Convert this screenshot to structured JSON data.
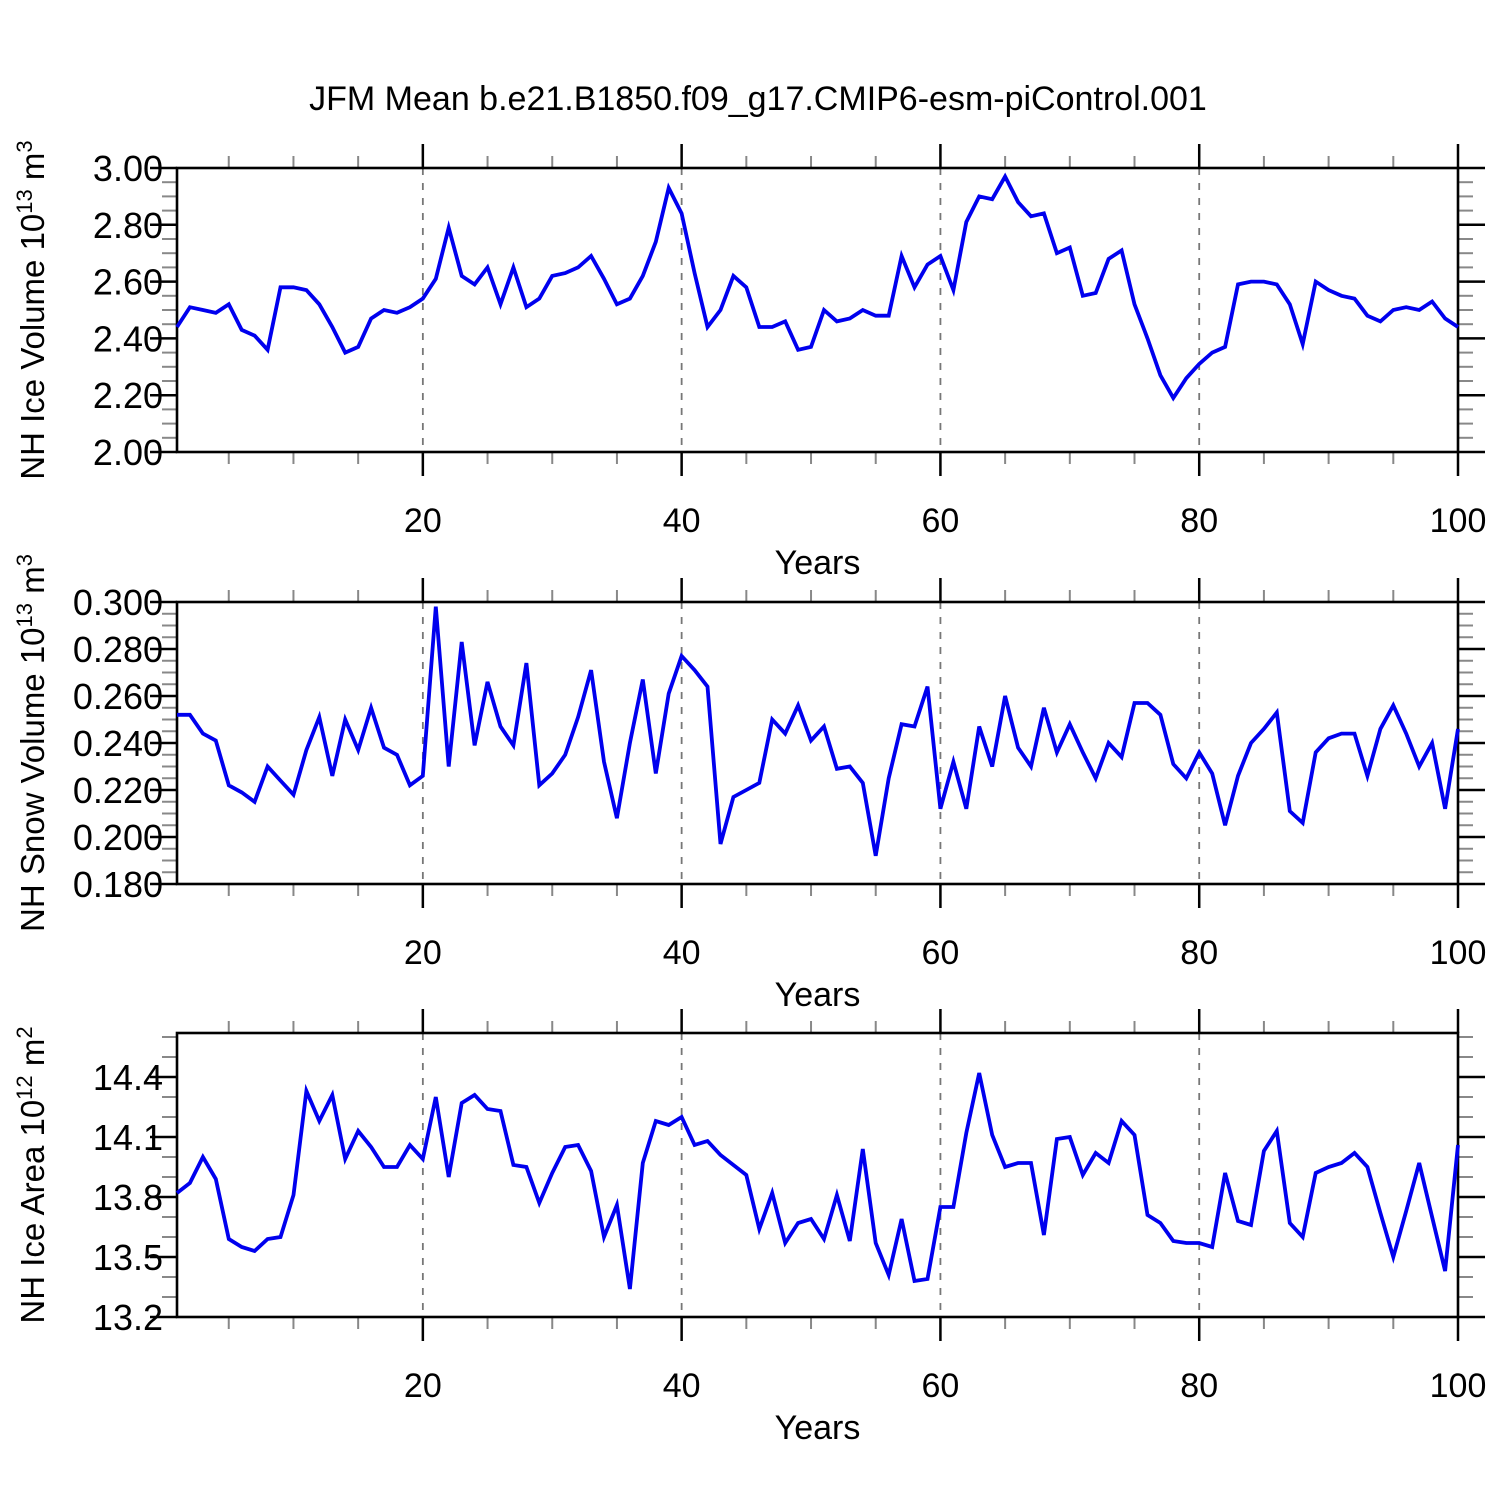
{
  "title": "JFM Mean b.e21.B1850.f09_g17.CMIP6-esm-piControl.001",
  "colors": {
    "line": "#0000ee",
    "frame": "#000000",
    "major_tick": "#000000",
    "minor_tick": "#888888",
    "gridline": "#777777",
    "text": "#000000",
    "background": "#ffffff"
  },
  "x_axis": {
    "label": "Years",
    "range": [
      1,
      100
    ],
    "major_ticks": [
      20,
      40,
      60,
      80,
      100
    ],
    "major_tick_labels": [
      "20",
      "40",
      "60",
      "80",
      "100"
    ],
    "minor_tick_step": 5,
    "gridlines": [
      20,
      40,
      60,
      80
    ]
  },
  "chart_data": [
    {
      "type": "line",
      "title": "NH Ice Volume",
      "ylabel": "NH Ice Volume 10^13 m^3",
      "ylabel_rich": [
        {
          "text": "NH Ice Volume 10",
          "sup": false
        },
        {
          "text": "13",
          "sup": true
        },
        {
          "text": " m",
          "sup": false
        },
        {
          "text": "3",
          "sup": true
        }
      ],
      "xlabel": "Years",
      "ylim": [
        2.0,
        3.0
      ],
      "ytick_values": [
        2.0,
        2.2,
        2.4,
        2.6,
        2.8,
        3.0
      ],
      "ytick_labels": [
        "2.00",
        "2.20",
        "2.40",
        "2.60",
        "2.80",
        "3.00"
      ],
      "yminor_step": 0.05,
      "x_start": 1,
      "values": [
        2.44,
        2.51,
        2.5,
        2.49,
        2.52,
        2.43,
        2.41,
        2.36,
        2.58,
        2.58,
        2.57,
        2.52,
        2.44,
        2.35,
        2.37,
        2.47,
        2.5,
        2.49,
        2.51,
        2.54,
        2.61,
        2.79,
        2.62,
        2.59,
        2.65,
        2.52,
        2.65,
        2.51,
        2.54,
        2.62,
        2.63,
        2.65,
        2.69,
        2.61,
        2.52,
        2.54,
        2.62,
        2.74,
        2.93,
        2.84,
        2.63,
        2.44,
        2.5,
        2.62,
        2.58,
        2.44,
        2.44,
        2.46,
        2.36,
        2.37,
        2.5,
        2.46,
        2.47,
        2.5,
        2.48,
        2.48,
        2.69,
        2.58,
        2.66,
        2.69,
        2.57,
        2.81,
        2.9,
        2.89,
        2.97,
        2.88,
        2.83,
        2.84,
        2.7,
        2.72,
        2.55,
        2.56,
        2.68,
        2.71,
        2.52,
        2.4,
        2.27,
        2.19,
        2.26,
        2.31,
        2.35,
        2.37,
        2.59,
        2.6,
        2.6,
        2.59,
        2.52,
        2.38,
        2.6,
        2.57,
        2.55,
        2.54,
        2.48,
        2.46,
        2.5,
        2.51,
        2.5,
        2.53,
        2.47,
        2.44
      ]
    },
    {
      "type": "line",
      "title": "NH Snow Volume",
      "ylabel": "NH Snow Volume 10^13 m^3",
      "ylabel_rich": [
        {
          "text": "NH Snow Volume 10",
          "sup": false
        },
        {
          "text": "13",
          "sup": true
        },
        {
          "text": " m",
          "sup": false
        },
        {
          "text": "3",
          "sup": true
        }
      ],
      "xlabel": "Years",
      "ylim": [
        0.18,
        0.3
      ],
      "ytick_values": [
        0.18,
        0.2,
        0.22,
        0.24,
        0.26,
        0.28,
        0.3
      ],
      "ytick_labels": [
        "0.180",
        "0.200",
        "0.220",
        "0.240",
        "0.260",
        "0.280",
        "0.300"
      ],
      "yminor_step": 0.005,
      "x_start": 1,
      "values": [
        0.252,
        0.252,
        0.244,
        0.241,
        0.222,
        0.219,
        0.215,
        0.23,
        0.224,
        0.218,
        0.237,
        0.251,
        0.226,
        0.25,
        0.237,
        0.255,
        0.238,
        0.235,
        0.222,
        0.226,
        0.298,
        0.23,
        0.283,
        0.239,
        0.266,
        0.247,
        0.239,
        0.274,
        0.222,
        0.227,
        0.235,
        0.251,
        0.271,
        0.232,
        0.208,
        0.24,
        0.267,
        0.227,
        0.261,
        0.277,
        0.271,
        0.264,
        0.197,
        0.217,
        0.22,
        0.223,
        0.25,
        0.244,
        0.256,
        0.241,
        0.247,
        0.229,
        0.23,
        0.223,
        0.192,
        0.225,
        0.248,
        0.247,
        0.264,
        0.212,
        0.232,
        0.212,
        0.247,
        0.23,
        0.26,
        0.238,
        0.23,
        0.255,
        0.236,
        0.248,
        0.236,
        0.225,
        0.24,
        0.234,
        0.257,
        0.257,
        0.252,
        0.231,
        0.225,
        0.236,
        0.227,
        0.205,
        0.226,
        0.24,
        0.246,
        0.253,
        0.211,
        0.206,
        0.236,
        0.242,
        0.244,
        0.244,
        0.226,
        0.246,
        0.256,
        0.244,
        0.23,
        0.24,
        0.212,
        0.246
      ]
    },
    {
      "type": "line",
      "title": "NH Ice Area",
      "ylabel": "NH Ice Area 10^12 m^2",
      "ylabel_rich": [
        {
          "text": "NH Ice Area 10",
          "sup": false
        },
        {
          "text": "12",
          "sup": true
        },
        {
          "text": " m",
          "sup": false
        },
        {
          "text": "2",
          "sup": true
        }
      ],
      "xlabel": "Years",
      "ylim": [
        13.2,
        14.62
      ],
      "ytick_values": [
        13.2,
        13.5,
        13.8,
        14.1,
        14.4
      ],
      "ytick_labels": [
        "13.2",
        "13.5",
        "13.8",
        "14.1",
        "14.4"
      ],
      "yminor_step": 0.1,
      "x_start": 1,
      "values": [
        13.82,
        13.87,
        14.0,
        13.89,
        13.59,
        13.55,
        13.53,
        13.59,
        13.6,
        13.81,
        14.33,
        14.18,
        14.31,
        13.99,
        14.13,
        14.05,
        13.95,
        13.95,
        14.06,
        13.99,
        14.3,
        13.9,
        14.27,
        14.31,
        14.24,
        14.23,
        13.96,
        13.95,
        13.77,
        13.92,
        14.05,
        14.06,
        13.93,
        13.6,
        13.76,
        13.34,
        13.97,
        14.18,
        14.16,
        14.2,
        14.06,
        14.08,
        14.01,
        13.96,
        13.91,
        13.64,
        13.82,
        13.57,
        13.67,
        13.69,
        13.59,
        13.81,
        13.58,
        14.04,
        13.57,
        13.41,
        13.69,
        13.38,
        13.39,
        13.75,
        13.75,
        14.12,
        14.42,
        14.11,
        13.95,
        13.97,
        13.97,
        13.61,
        14.09,
        14.1,
        13.91,
        14.02,
        13.97,
        14.18,
        14.11,
        13.71,
        13.67,
        13.58,
        13.57,
        13.57,
        13.55,
        13.92,
        13.68,
        13.66,
        14.03,
        14.13,
        13.67,
        13.6,
        13.92,
        13.95,
        13.97,
        14.02,
        13.95,
        13.72,
        13.5,
        13.73,
        13.97,
        13.7,
        13.43,
        14.06
      ]
    }
  ]
}
